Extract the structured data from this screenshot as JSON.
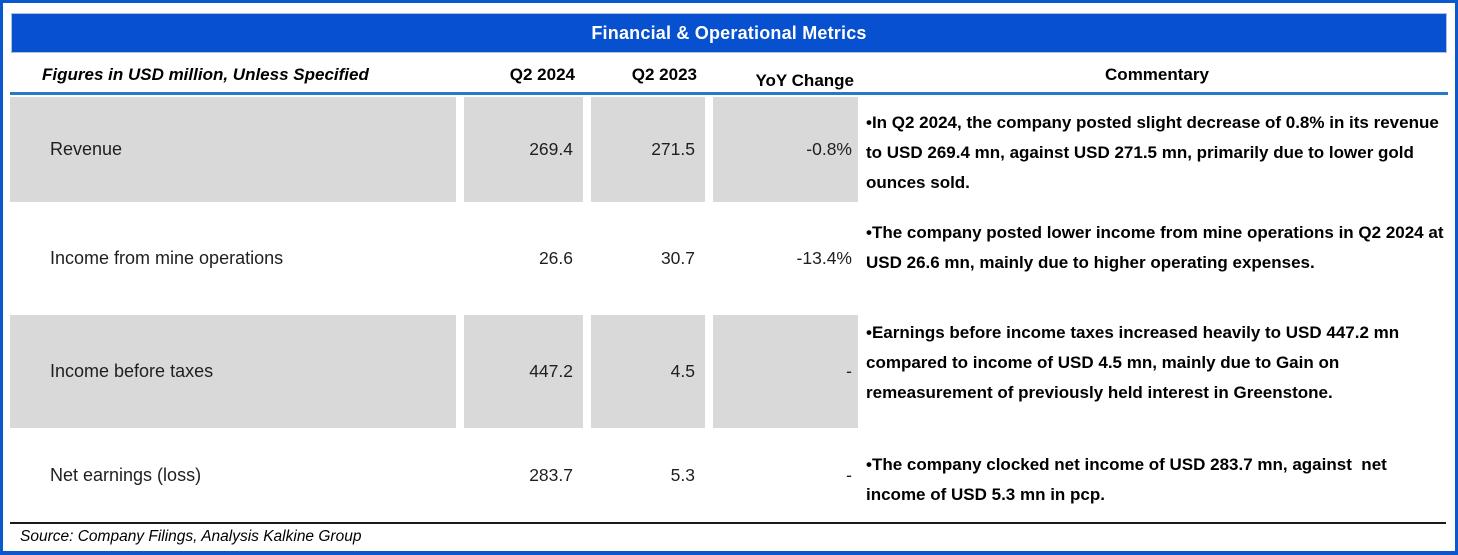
{
  "title": "Financial & Operational Metrics",
  "source_note": "Source: Company Filings, Analysis Kalkine Group",
  "colors": {
    "title_bar_blue": "#0750D0",
    "outer_border_blue": "#0B57CE",
    "header_rule_blue": "#2878C8",
    "row_stripe_gray": "#D9D9D9"
  },
  "chart_data": {
    "type": "table",
    "title": "Financial & Operational Metrics",
    "columns": [
      "Figures in USD million, Unless Specified",
      "Q2 2024",
      "Q2 2023",
      "YoY Change",
      "Commentary"
    ],
    "rows": [
      {
        "metric": "Revenue",
        "q2_2024": "269.4",
        "q2_2023": "271.5",
        "yoy_change": "-0.8%",
        "commentary": "•In Q2 2024, the company posted slight decrease of 0.8% in its revenue to USD 269.4 mn, against USD 271.5 mn, primarily due to lower gold ounces sold."
      },
      {
        "metric": "Income from mine operations",
        "q2_2024": "26.6",
        "q2_2023": "30.7",
        "yoy_change": "-13.4%",
        "commentary": "•The company posted lower income from mine operations in Q2 2024 at USD 26.6 mn, mainly due to higher operating expenses."
      },
      {
        "metric": "Income before taxes",
        "q2_2024": "447.2",
        "q2_2023": "4.5",
        "yoy_change": "-",
        "commentary": "•Earnings before income taxes increased heavily to USD 447.2 mn compared to income of USD 4.5 mn, mainly due to Gain on remeasurement of previously held interest in Greenstone."
      },
      {
        "metric": "Net earnings (loss)",
        "q2_2024": "283.7",
        "q2_2023": "5.3",
        "yoy_change": "-",
        "commentary": "•The company clocked net income of USD 283.7 mn, against  net income of USD 5.3 mn in pcp."
      }
    ]
  }
}
